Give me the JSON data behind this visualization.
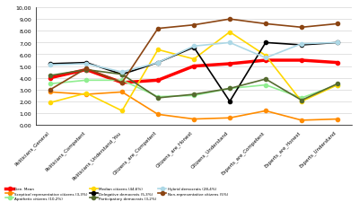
{
  "categories": [
    "Politicians_General",
    "Politicians_Competent",
    "Politicians_Understand_You",
    "Citizens_are_Competent",
    "Citizens_are_Honest",
    "Citizens_Understand",
    "Experts_are_Competent",
    "Experts_are_Honest",
    "Experts_Understand"
  ],
  "series": {
    "Gen. Mean": {
      "color": "#FF0000",
      "values": [
        4.0,
        4.7,
        3.6,
        3.8,
        5.0,
        5.2,
        5.5,
        5.5,
        5.3
      ],
      "linewidth": 2.5,
      "marker": "o",
      "markersize": 3
    },
    "Sceptical representative citizens (3,3%)": {
      "color": "#FF8C00",
      "values": [
        2.8,
        2.6,
        2.8,
        0.9,
        0.5,
        0.6,
        1.2,
        0.4,
        0.5
      ],
      "linewidth": 1.2,
      "marker": "o",
      "markersize": 3
    },
    "Apathetic citizens (10,2%)": {
      "color": "#90EE90",
      "values": [
        3.5,
        3.8,
        3.8,
        2.4,
        2.5,
        3.1,
        3.4,
        2.3,
        3.4
      ],
      "linewidth": 1.2,
      "marker": "o",
      "markersize": 3
    },
    "Median citizens (44,6%)": {
      "color": "#FFD700",
      "values": [
        1.9,
        2.7,
        1.2,
        6.4,
        5.6,
        7.9,
        5.9,
        2.0,
        3.4
      ],
      "linewidth": 1.2,
      "marker": "o",
      "markersize": 3
    },
    "Delegative democrats (5,3%)": {
      "color": "#000000",
      "values": [
        5.2,
        5.3,
        4.3,
        5.3,
        6.6,
        2.0,
        7.0,
        6.8,
        7.0
      ],
      "linewidth": 1.2,
      "marker": "o",
      "markersize": 3
    },
    "Participatory democrats (3,2%)": {
      "color": "#556B2F",
      "values": [
        4.2,
        4.7,
        4.3,
        2.3,
        2.6,
        3.1,
        3.9,
        2.1,
        3.5
      ],
      "linewidth": 1.2,
      "marker": "o",
      "markersize": 3
    },
    "Hybrid democrats (28,4%)": {
      "color": "#ADD8E6",
      "values": [
        5.1,
        5.2,
        4.5,
        5.3,
        6.7,
        7.0,
        5.7,
        6.9,
        7.0
      ],
      "linewidth": 1.2,
      "marker": "o",
      "markersize": 3
    },
    "Non-representative citizens (5%)": {
      "color": "#8B4513",
      "values": [
        3.0,
        4.8,
        3.6,
        8.2,
        8.5,
        9.0,
        8.6,
        8.3,
        8.6
      ],
      "linewidth": 1.2,
      "marker": "o",
      "markersize": 3
    }
  },
  "ylim": [
    0.0,
    10.0
  ],
  "ytick_labels": [
    "0,00",
    "1,00",
    "2,00",
    "3,00",
    "4,00",
    "5,00",
    "6,00",
    "7,00",
    "8,00",
    "9,00",
    "10,00"
  ],
  "yticks": [
    0.0,
    1.0,
    2.0,
    3.0,
    4.0,
    5.0,
    6.0,
    7.0,
    8.0,
    9.0,
    10.0
  ],
  "bg_color": "#FFFFFF",
  "grid_color": "#CCCCCC"
}
